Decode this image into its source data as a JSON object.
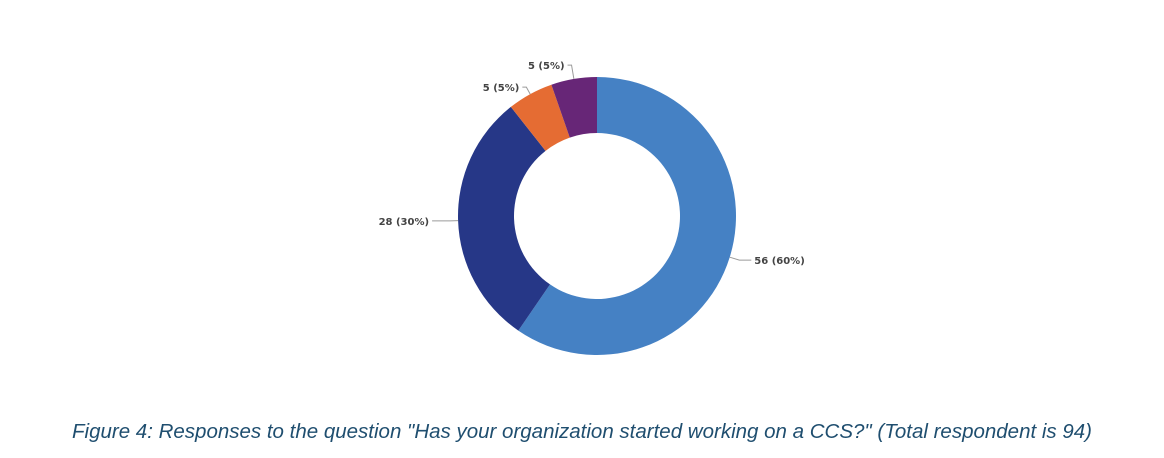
{
  "chart_data": {
    "type": "pie",
    "variant": "donut",
    "title": "",
    "categories": [
      "",
      "",
      "",
      ""
    ],
    "values": [
      56,
      28,
      5,
      5
    ],
    "percentages": [
      60,
      30,
      5,
      5
    ],
    "labels": [
      "56 (60%)",
      "28 (30%)",
      "5 (5%)",
      "5 (5%)"
    ],
    "colors": [
      "#4581c4",
      "#263787",
      "#e56c33",
      "#672677"
    ],
    "legend": "none"
  },
  "caption": "Figure 4: Responses to the question  \"Has your organization started working on a CCS?\" (Total respondent is 94)"
}
